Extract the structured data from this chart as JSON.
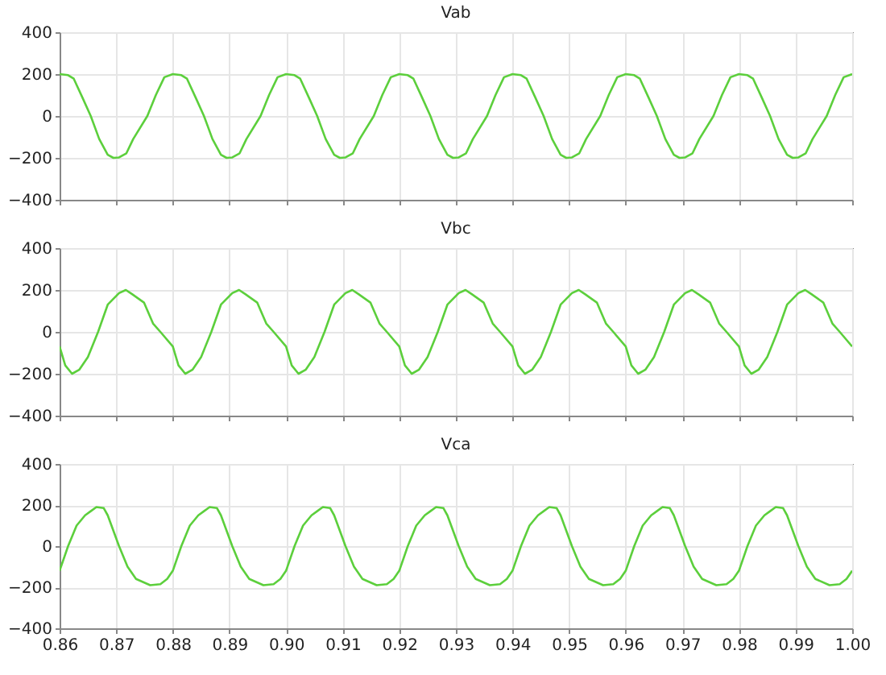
{
  "chart_data": [
    {
      "type": "line",
      "title": "Vab",
      "tick_labels": "y",
      "grid": true,
      "x": [
        0.86,
        0.8615,
        0.8625,
        0.864,
        0.8655,
        0.867,
        0.8685,
        0.8695,
        0.8705,
        0.8718,
        0.873,
        0.8755,
        0.877,
        0.8785,
        0.88,
        0.8815,
        0.8825,
        0.884,
        0.8855,
        0.887,
        0.8885,
        0.8895,
        0.8905,
        0.8918,
        0.893,
        0.8955,
        0.897,
        0.8985,
        0.9,
        0.9015,
        0.9025,
        0.904,
        0.9055,
        0.907,
        0.9085,
        0.9095,
        0.9105,
        0.9118,
        0.913,
        0.9155,
        0.917,
        0.9185,
        0.92,
        0.9215,
        0.9225,
        0.924,
        0.9255,
        0.927,
        0.9285,
        0.9295,
        0.9305,
        0.9318,
        0.933,
        0.9355,
        0.937,
        0.9385,
        0.94,
        0.9415,
        0.9425,
        0.944,
        0.9455,
        0.947,
        0.9485,
        0.9495,
        0.9505,
        0.9518,
        0.953,
        0.9555,
        0.957,
        0.9585,
        0.96,
        0.9615,
        0.9625,
        0.964,
        0.9655,
        0.967,
        0.9685,
        0.9695,
        0.9705,
        0.9718,
        0.973,
        0.9755,
        0.977,
        0.9785,
        0.98,
        0.9815,
        0.9825,
        0.984,
        0.9855,
        0.987,
        0.9885,
        0.9895,
        0.9905,
        0.9918,
        0.993,
        0.9955,
        0.997,
        0.9985,
        1.0
      ],
      "series": [
        {
          "color": "#5ccf3c",
          "values": [
            200,
            195,
            178,
            90,
            0,
            -110,
            -185,
            -200,
            -198,
            -178,
            -110,
            0,
            100,
            185,
            200,
            195,
            178,
            90,
            0,
            -110,
            -185,
            -200,
            -198,
            -178,
            -110,
            0,
            100,
            185,
            200,
            195,
            178,
            90,
            0,
            -110,
            -185,
            -200,
            -198,
            -178,
            -110,
            0,
            100,
            185,
            200,
            195,
            178,
            90,
            0,
            -110,
            -185,
            -200,
            -198,
            -178,
            -110,
            0,
            100,
            185,
            200,
            195,
            178,
            90,
            0,
            -110,
            -185,
            -200,
            -198,
            -178,
            -110,
            0,
            100,
            185,
            200,
            195,
            178,
            90,
            0,
            -110,
            -185,
            -200,
            -198,
            -178,
            -110,
            0,
            100,
            185,
            200,
            195,
            178,
            90,
            0,
            -110,
            -185,
            -200,
            -198,
            -178,
            -110,
            0,
            100,
            185,
            200
          ]
        }
      ],
      "xlim": [
        0.86,
        1.0
      ],
      "xticks": [
        0.86,
        0.87,
        0.88,
        0.89,
        0.9,
        0.91,
        0.92,
        0.93,
        0.94,
        0.95,
        0.96,
        0.97,
        0.98,
        0.99,
        1.0
      ],
      "ylim": [
        -400,
        400
      ],
      "yticks": [
        -400,
        -200,
        0,
        200,
        400
      ]
    },
    {
      "type": "line",
      "title": "Vbc",
      "tick_labels": "y",
      "grid": true,
      "x": [
        0.86,
        0.861,
        0.8622,
        0.8635,
        0.865,
        0.8668,
        0.8685,
        0.8705,
        0.8717,
        0.8728,
        0.8749,
        0.8765,
        0.8778,
        0.88,
        0.881,
        0.8822,
        0.8835,
        0.885,
        0.8868,
        0.8885,
        0.8905,
        0.8917,
        0.8928,
        0.8949,
        0.8965,
        0.8978,
        0.9,
        0.901,
        0.9022,
        0.9035,
        0.905,
        0.9068,
        0.9085,
        0.9105,
        0.9117,
        0.9128,
        0.9149,
        0.9165,
        0.9178,
        0.92,
        0.921,
        0.9222,
        0.9235,
        0.925,
        0.9268,
        0.9285,
        0.9305,
        0.9317,
        0.9328,
        0.9349,
        0.9365,
        0.9378,
        0.94,
        0.941,
        0.9422,
        0.9435,
        0.945,
        0.9468,
        0.9485,
        0.9505,
        0.9517,
        0.9528,
        0.9549,
        0.9565,
        0.9578,
        0.96,
        0.961,
        0.9622,
        0.9635,
        0.965,
        0.9668,
        0.9685,
        0.9705,
        0.9717,
        0.9728,
        0.9749,
        0.9765,
        0.9778,
        0.98,
        0.981,
        0.9822,
        0.9835,
        0.985,
        0.9868,
        0.9885,
        0.9905,
        0.9917,
        0.9928,
        0.9949,
        0.9965,
        0.9978,
        1.0
      ],
      "series": [
        {
          "color": "#5ccf3c",
          "values": [
            -70,
            -160,
            -200,
            -180,
            -120,
            0,
            130,
            185,
            200,
            180,
            140,
            40,
            0,
            -70,
            -160,
            -200,
            -180,
            -120,
            0,
            130,
            185,
            200,
            180,
            140,
            40,
            0,
            -70,
            -160,
            -200,
            -180,
            -120,
            0,
            130,
            185,
            200,
            180,
            140,
            40,
            0,
            -70,
            -160,
            -200,
            -180,
            -120,
            0,
            130,
            185,
            200,
            180,
            140,
            40,
            0,
            -70,
            -160,
            -200,
            -180,
            -120,
            0,
            130,
            185,
            200,
            180,
            140,
            40,
            0,
            -70,
            -160,
            -200,
            -180,
            -120,
            0,
            130,
            185,
            200,
            180,
            140,
            40,
            0,
            -70,
            -160,
            -200,
            -180,
            -120,
            0,
            130,
            185,
            200,
            180,
            140,
            40,
            0,
            -70
          ]
        }
      ],
      "xlim": [
        0.86,
        1.0
      ],
      "xticks": [
        0.86,
        0.87,
        0.88,
        0.89,
        0.9,
        0.91,
        0.92,
        0.93,
        0.94,
        0.95,
        0.96,
        0.97,
        0.98,
        0.99,
        1.0
      ],
      "ylim": [
        -400,
        400
      ],
      "yticks": [
        -400,
        -200,
        0,
        200,
        400
      ]
    },
    {
      "type": "line",
      "title": "Vca",
      "grid": true,
      "x": [
        0.86,
        0.8615,
        0.863,
        0.8645,
        0.8655,
        0.8665,
        0.8678,
        0.8685,
        0.8705,
        0.872,
        0.8735,
        0.876,
        0.8778,
        0.879,
        0.88,
        0.8815,
        0.883,
        0.8845,
        0.8855,
        0.8865,
        0.8878,
        0.8885,
        0.8905,
        0.892,
        0.8935,
        0.896,
        0.8978,
        0.899,
        0.9,
        0.9015,
        0.903,
        0.9045,
        0.9055,
        0.9065,
        0.9078,
        0.9085,
        0.9105,
        0.912,
        0.9135,
        0.916,
        0.9178,
        0.919,
        0.92,
        0.9215,
        0.923,
        0.9245,
        0.9255,
        0.9265,
        0.9278,
        0.9285,
        0.9305,
        0.932,
        0.9335,
        0.936,
        0.9378,
        0.939,
        0.94,
        0.9415,
        0.943,
        0.9445,
        0.9455,
        0.9465,
        0.9478,
        0.9485,
        0.9505,
        0.952,
        0.9535,
        0.956,
        0.9578,
        0.959,
        0.96,
        0.9615,
        0.963,
        0.9645,
        0.9655,
        0.9665,
        0.9678,
        0.9685,
        0.9705,
        0.972,
        0.9735,
        0.976,
        0.9778,
        0.979,
        0.98,
        0.9815,
        0.983,
        0.9845,
        0.9855,
        0.9865,
        0.9878,
        0.9885,
        0.9905,
        0.992,
        0.9935,
        0.996,
        0.9978,
        0.999,
        1.0
      ],
      "series": [
        {
          "color": "#5ccf3c",
          "values": [
            -120,
            0,
            100,
            150,
            170,
            190,
            185,
            150,
            0,
            -100,
            -160,
            -190,
            -185,
            -160,
            -120,
            0,
            100,
            150,
            170,
            190,
            185,
            150,
            0,
            -100,
            -160,
            -190,
            -185,
            -160,
            -120,
            0,
            100,
            150,
            170,
            190,
            185,
            150,
            0,
            -100,
            -160,
            -190,
            -185,
            -160,
            -120,
            0,
            100,
            150,
            170,
            190,
            185,
            150,
            0,
            -100,
            -160,
            -190,
            -185,
            -160,
            -120,
            0,
            100,
            150,
            170,
            190,
            185,
            150,
            0,
            -100,
            -160,
            -190,
            -185,
            -160,
            -120,
            0,
            100,
            150,
            170,
            190,
            185,
            150,
            0,
            -100,
            -160,
            -190,
            -185,
            -160,
            -120,
            0,
            100,
            150,
            170,
            190,
            185,
            150,
            0,
            -100,
            -160,
            -190,
            -185,
            -160,
            -120
          ]
        }
      ],
      "xlim": [
        0.86,
        1.0
      ],
      "xticks": [
        0.86,
        0.87,
        0.88,
        0.89,
        {
          "value": 0.9,
          "label": "0.90"
        },
        0.91,
        0.92,
        0.93,
        0.94,
        0.95,
        0.96,
        0.97,
        0.98,
        0.99,
        {
          "value": 1.0,
          "label": "1.00"
        }
      ],
      "ylim": [
        -400,
        400
      ],
      "yticks": [
        -400,
        -200,
        0,
        200,
        400
      ]
    }
  ]
}
